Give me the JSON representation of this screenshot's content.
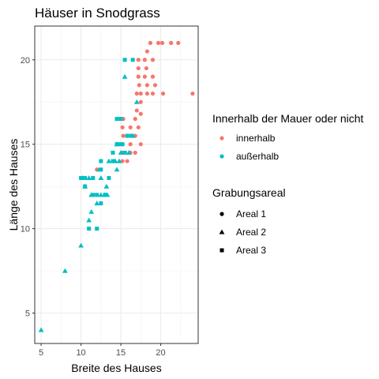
{
  "chart_data": {
    "type": "scatter",
    "title": "Häuser in Snodgrass",
    "xlabel": "Breite des Hauses",
    "ylabel": "Länge des Hauses",
    "xlim": [
      4.2,
      24.7
    ],
    "ylim": [
      3.2,
      22.0
    ],
    "x_ticks": [
      5,
      10,
      15,
      20
    ],
    "y_ticks": [
      5,
      10,
      15,
      20
    ],
    "grid": true,
    "legend_placement": "right",
    "color_legend": {
      "title": "Innerhalb der Mauer oder nicht",
      "entries": [
        {
          "label": "innerhalb",
          "color": "#F8766D"
        },
        {
          "label": "außerhalb",
          "color": "#00BFC4"
        }
      ]
    },
    "shape_legend": {
      "title": "Grabungsareal",
      "entries": [
        {
          "label": "Areal 1",
          "shape": "circle"
        },
        {
          "label": "Areal 2",
          "shape": "triangle"
        },
        {
          "label": "Areal 3",
          "shape": "square"
        }
      ]
    },
    "series": [
      {
        "group": "innerhalb",
        "color": "#F8766D",
        "shape": "circle",
        "points": [
          [
            18.7,
            21
          ],
          [
            19.7,
            21
          ],
          [
            20.2,
            21
          ],
          [
            21.3,
            21
          ],
          [
            22.2,
            21
          ],
          [
            18.3,
            20.5
          ],
          [
            17.2,
            20
          ],
          [
            18,
            20
          ],
          [
            19,
            20
          ],
          [
            17.2,
            19.5
          ],
          [
            18.2,
            19.5
          ],
          [
            17.2,
            19
          ],
          [
            18,
            19
          ],
          [
            19,
            19
          ],
          [
            17.3,
            18.5
          ],
          [
            18.3,
            18.5
          ],
          [
            19.3,
            18.5
          ],
          [
            17,
            18
          ],
          [
            17.5,
            18
          ],
          [
            18.3,
            18
          ],
          [
            19,
            18
          ],
          [
            20.3,
            18
          ],
          [
            24,
            18
          ],
          [
            17.5,
            17.5
          ],
          [
            17,
            17
          ],
          [
            17.5,
            16.8
          ],
          [
            15.3,
            16.5
          ],
          [
            16.8,
            16.5
          ],
          [
            15.2,
            16
          ],
          [
            16.2,
            16
          ],
          [
            17.2,
            16
          ],
          [
            15.3,
            15.5
          ],
          [
            16.8,
            15.5
          ],
          [
            15.2,
            15
          ],
          [
            16.2,
            15
          ],
          [
            17.5,
            15
          ],
          [
            15.2,
            14.5
          ],
          [
            16.2,
            14.5
          ],
          [
            16.8,
            14.5
          ],
          [
            15.2,
            14
          ],
          [
            15.8,
            14
          ],
          [
            12,
            13.5
          ]
        ]
      },
      {
        "group": "außerhalb",
        "color": "#00BFC4",
        "shape": "triangle",
        "points": [
          [
            5,
            4
          ],
          [
            8,
            7.5
          ],
          [
            10,
            9
          ],
          [
            11,
            10.5
          ],
          [
            11.3,
            11
          ],
          [
            12,
            11.5
          ],
          [
            11.3,
            12
          ],
          [
            12.5,
            12
          ],
          [
            13,
            12
          ],
          [
            13.3,
            12
          ],
          [
            10.5,
            12.5
          ],
          [
            13.2,
            12.5
          ],
          [
            10.2,
            13
          ],
          [
            11,
            13
          ],
          [
            12.5,
            13
          ],
          [
            12.3,
            13.5
          ],
          [
            14.5,
            13.5
          ],
          [
            13.5,
            14
          ],
          [
            14.3,
            14
          ],
          [
            14.8,
            14
          ],
          [
            15,
            14.5
          ],
          [
            16,
            14.5
          ],
          [
            14.5,
            15
          ],
          [
            16.5,
            15.5
          ],
          [
            17,
            17.5
          ],
          [
            15.5,
            19
          ]
        ]
      },
      {
        "group": "außerhalb",
        "color": "#00BFC4",
        "shape": "square",
        "points": [
          [
            15.5,
            20
          ],
          [
            16.5,
            20
          ],
          [
            14.5,
            16.5
          ],
          [
            15,
            16.5
          ],
          [
            15.8,
            15.5
          ],
          [
            16.3,
            15.5
          ],
          [
            14.5,
            15
          ],
          [
            14.8,
            15
          ],
          [
            15.2,
            15
          ],
          [
            14,
            14.5
          ],
          [
            15.5,
            14.5
          ],
          [
            12.5,
            14
          ],
          [
            14,
            14
          ],
          [
            12.5,
            13.5
          ],
          [
            13.5,
            13
          ],
          [
            10,
            13
          ],
          [
            10.5,
            13
          ],
          [
            11.5,
            13
          ],
          [
            10.5,
            12.5
          ],
          [
            11.5,
            12
          ],
          [
            12,
            12
          ],
          [
            13,
            12
          ],
          [
            12.5,
            11.5
          ],
          [
            11,
            10
          ],
          [
            12,
            10
          ]
        ]
      }
    ]
  }
}
